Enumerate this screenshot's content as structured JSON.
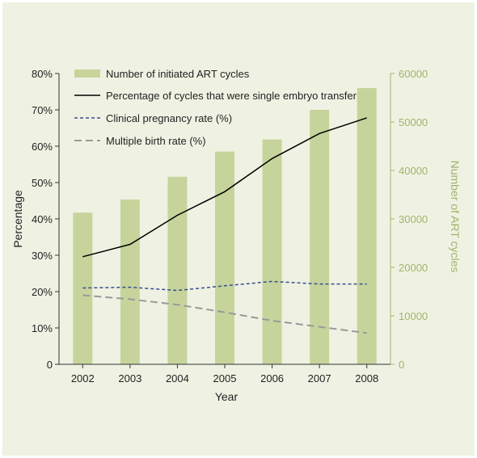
{
  "chart_data": {
    "type": "bar",
    "title": "",
    "xlabel": "Year",
    "ylabel_left": "Percentage",
    "ylabel_right": "Number of ART cycles",
    "categories": [
      "2002",
      "2003",
      "2004",
      "2005",
      "2006",
      "2007",
      "2008"
    ],
    "ylim_left": [
      0,
      80
    ],
    "ylim_right": [
      0,
      60000
    ],
    "left_ticks": [
      "0",
      "10%",
      "20%",
      "30%",
      "40%",
      "50%",
      "60%",
      "70%",
      "80%"
    ],
    "right_ticks": [
      "0",
      "10000",
      "20000",
      "30000",
      "40000",
      "50000",
      "60000"
    ],
    "grid": false,
    "legend_position": "top-left",
    "series": [
      {
        "name": "Number of initiated ART cycles",
        "type": "bar",
        "axis": "right",
        "color": "#c6d49c",
        "values": [
          31300,
          34000,
          38700,
          43900,
          46400,
          52500,
          57000
        ]
      },
      {
        "name": "Percentage of cycles that were single embryo transfer",
        "type": "line",
        "style": "solid",
        "axis": "left",
        "color": "#000000",
        "values": [
          29.6,
          33.0,
          41.0,
          47.5,
          56.6,
          63.5,
          67.8
        ]
      },
      {
        "name": "Clinical pregnancy rate (%)",
        "type": "line",
        "style": "dashed",
        "axis": "left",
        "color": "#3a4c8f",
        "values": [
          21.0,
          21.2,
          20.3,
          21.6,
          22.8,
          22.1,
          22.1
        ]
      },
      {
        "name": "Multiple birth rate (%)",
        "type": "line",
        "style": "dashed",
        "axis": "left",
        "color": "#999999",
        "values": [
          19.0,
          17.9,
          16.4,
          14.3,
          12.0,
          10.3,
          8.6
        ]
      }
    ]
  },
  "colors": {
    "background": "#eff2e2",
    "bar": "#c6d49c",
    "right_axis": "#9fb46b",
    "axis": "#333333"
  }
}
